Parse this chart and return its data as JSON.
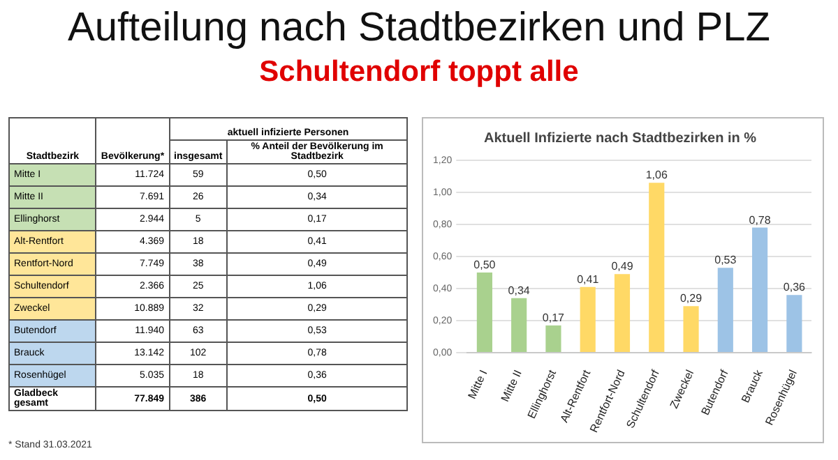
{
  "chart_data": [
    {
      "type": "other",
      "title": "Aufteilung nach Stadtbezirken und PLZ",
      "subtitle": "Schultendorf toppt alle",
      "xlabel": "Stadtbezirk",
      "legend_title": "aktuell infizierte Personen",
      "categories": [
        "Mitte I",
        "Mitte II",
        "Ellinghorst",
        "Alt-Rentfort",
        "Rentfort-Nord",
        "Schultendorf",
        "Zweckel",
        "Butendorf",
        "Brauck",
        "Rosenhügel",
        "Gladbeck gesamt"
      ],
      "colors": [
        "#c6e0b4",
        "#c6e0b4",
        "#c6e0b4",
        "#ffe699",
        "#ffe699",
        "#ffe699",
        "#ffe699",
        "#bdd7ee",
        "#bdd7ee",
        "#bdd7ee",
        null
      ],
      "series": [
        {
          "name": "Bevölkerung*",
          "values": [
            11724,
            7691,
            2944,
            4369,
            7749,
            2366,
            10889,
            11940,
            13142,
            5035,
            77849
          ],
          "value_labels": [
            "11.724",
            "7.691",
            "2.944",
            "4.369",
            "7.749",
            "2.366",
            "10.889",
            "11.940",
            "13.142",
            "5.035",
            "77.849"
          ]
        },
        {
          "name": "insgesamt",
          "values": [
            59,
            26,
            5,
            18,
            38,
            25,
            32,
            63,
            102,
            18,
            386
          ]
        },
        {
          "name": "% Anteil der Bevölkerung im Stadtbezirk",
          "values": [
            0.5,
            0.34,
            0.17,
            0.41,
            0.49,
            1.06,
            0.29,
            0.53,
            0.78,
            0.36,
            0.5
          ],
          "value_labels": [
            "0,50",
            "0,34",
            "0,17",
            "0,41",
            "0,49",
            "1,06",
            "0,29",
            "0,53",
            "0,78",
            "0,36",
            "0,50"
          ]
        }
      ],
      "data_labels": true,
      "annotations": [
        "* Stand 31.03.2021"
      ]
    },
    {
      "type": "bar",
      "title": "Aktuell Infizierte nach Stadtbezirken in %",
      "categories": [
        "Mitte I",
        "Mitte II",
        "Ellinghorst",
        "Alt-Rentfort",
        "Rentfort-Nord",
        "Schultendorf",
        "Zweckel",
        "Butendorf",
        "Brauck",
        "Rosenhügel"
      ],
      "values": [
        0.5,
        0.34,
        0.17,
        0.41,
        0.49,
        1.06,
        0.29,
        0.53,
        0.78,
        0.36
      ],
      "value_labels": [
        "0,50",
        "0,34",
        "0,17",
        "0,41",
        "0,49",
        "1,06",
        "0,29",
        "0,53",
        "0,78",
        "0,36"
      ],
      "colors": [
        "#a9d18e",
        "#a9d18e",
        "#a9d18e",
        "#ffd966",
        "#ffd966",
        "#ffd966",
        "#ffd966",
        "#9dc3e6",
        "#9dc3e6",
        "#9dc3e6"
      ],
      "ylim": [
        0,
        1.2
      ],
      "yticks": [
        {
          "value": 0,
          "label": "0,00"
        },
        {
          "value": 0.2,
          "label": "0,20"
        },
        {
          "value": 0.4,
          "label": "0,40"
        },
        {
          "value": 0.6,
          "label": "0,60"
        },
        {
          "value": 0.8,
          "label": "0,80"
        },
        {
          "value": 1,
          "label": "1,00"
        },
        {
          "value": 1.2,
          "label": "1,20"
        }
      ],
      "grid": "y"
    }
  ]
}
